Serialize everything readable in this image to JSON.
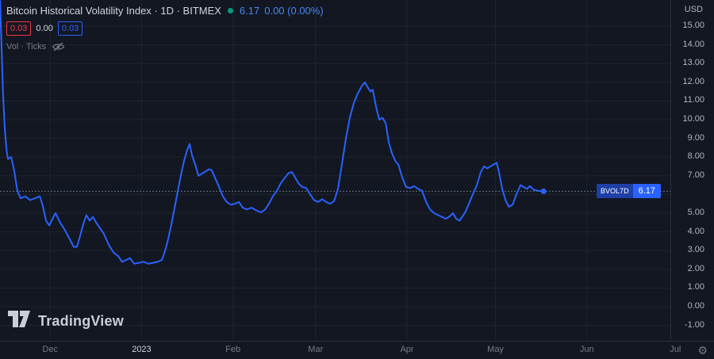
{
  "colors": {
    "background": "#131722",
    "border": "#2a2e39",
    "grid": "rgba(42,46,57,0.55)",
    "line": "#2962ff",
    "last_price_line": "#5d7388",
    "axis_text": "#b2b5be",
    "muted_text": "#787b86",
    "title_text": "#d1d4dc",
    "change_text": "#4589f5",
    "status_dot_green": "#089981",
    "red": "#f23645",
    "tag_symbol_bg": "#1d3fa6",
    "tag_value_bg": "#2962ff"
  },
  "header": {
    "title": "Bitcoin Historical Volatility Index · 1D · BITMEX",
    "price": "6.17",
    "change": "0.00 (0.00%)",
    "series_values": {
      "v1": "0.03",
      "v2": "0.00",
      "v3": "0.03"
    },
    "indicator_label": "Vol · Ticks",
    "currency": "USD"
  },
  "price_tag": {
    "symbol": "BVOL7D",
    "value": "6.17"
  },
  "footer": {
    "brand": "TradingView",
    "gear_icon": "⚙"
  },
  "chart_data": {
    "type": "line",
    "title": "Bitcoin Historical Volatility Index",
    "series_name": "BVOL7D",
    "last_value": 6.17,
    "legend_position": "top-left",
    "grid": "faint",
    "y_axis": {
      "range": [
        -1.82,
        16.4
      ],
      "ticks": [
        15,
        14,
        13,
        12,
        11,
        10,
        9,
        8,
        7,
        5,
        4,
        3,
        2,
        1,
        0,
        -1
      ],
      "grid_lines": [
        15,
        14,
        13,
        12,
        11,
        10,
        9,
        8,
        7,
        6,
        5,
        4,
        3,
        2,
        1,
        0,
        -1
      ]
    },
    "x_axis": {
      "unit": "days from first visible bar (mid-Nov 2022)",
      "range": [
        0,
        227.3
      ],
      "ticks": [
        {
          "label": "Dec",
          "day": 17
        },
        {
          "label": "2023",
          "day": 48,
          "major": true
        },
        {
          "label": "Feb",
          "day": 79
        },
        {
          "label": "Mar",
          "day": 107
        },
        {
          "label": "Apr",
          "day": 138
        },
        {
          "label": "May",
          "day": 168
        },
        {
          "label": "Jun",
          "day": 199
        },
        {
          "label": "Jul",
          "day": 229
        }
      ]
    },
    "points": [
      [
        0,
        16.4
      ],
      [
        0.5,
        14.0
      ],
      [
        1,
        11.5
      ],
      [
        1.6,
        9.6
      ],
      [
        2.2,
        8.4
      ],
      [
        2.7,
        7.9
      ],
      [
        3.8,
        8.0
      ],
      [
        4.8,
        7.3
      ],
      [
        5.9,
        6.2
      ],
      [
        7,
        5.8
      ],
      [
        8.6,
        5.9
      ],
      [
        10.2,
        5.7
      ],
      [
        11.8,
        5.8
      ],
      [
        13.5,
        5.9
      ],
      [
        14.5,
        5.4
      ],
      [
        15.6,
        4.6
      ],
      [
        16.7,
        4.35
      ],
      [
        17.8,
        4.7
      ],
      [
        18.8,
        5.0
      ],
      [
        20.4,
        4.5
      ],
      [
        22,
        4.1
      ],
      [
        23.7,
        3.6
      ],
      [
        25,
        3.2
      ],
      [
        26.1,
        3.2
      ],
      [
        27.2,
        3.8
      ],
      [
        28.2,
        4.4
      ],
      [
        29.3,
        4.9
      ],
      [
        30.4,
        4.6
      ],
      [
        31.5,
        4.8
      ],
      [
        32.6,
        4.5
      ],
      [
        33.9,
        4.2
      ],
      [
        35.2,
        3.9
      ],
      [
        36.9,
        3.3
      ],
      [
        38.5,
        2.9
      ],
      [
        40.1,
        2.7
      ],
      [
        41.4,
        2.4
      ],
      [
        42.8,
        2.5
      ],
      [
        44.1,
        2.6
      ],
      [
        45.5,
        2.3
      ],
      [
        47.1,
        2.35
      ],
      [
        48.7,
        2.4
      ],
      [
        50.3,
        2.3
      ],
      [
        51.9,
        2.35
      ],
      [
        53.5,
        2.4
      ],
      [
        54.9,
        2.5
      ],
      [
        56,
        3.0
      ],
      [
        57,
        3.6
      ],
      [
        58.1,
        4.4
      ],
      [
        59.2,
        5.3
      ],
      [
        60.3,
        6.2
      ],
      [
        61.3,
        7.0
      ],
      [
        62.4,
        7.8
      ],
      [
        63.5,
        8.4
      ],
      [
        64.3,
        8.7
      ],
      [
        65.1,
        8.1
      ],
      [
        66.2,
        7.6
      ],
      [
        67.3,
        7.0
      ],
      [
        68.3,
        7.1
      ],
      [
        69.4,
        7.2
      ],
      [
        70.8,
        7.35
      ],
      [
        71.8,
        7.3
      ],
      [
        72.9,
        6.9
      ],
      [
        74.3,
        6.4
      ],
      [
        75.6,
        5.9
      ],
      [
        76.9,
        5.6
      ],
      [
        78.3,
        5.45
      ],
      [
        79.6,
        5.5
      ],
      [
        81,
        5.6
      ],
      [
        82.3,
        5.3
      ],
      [
        83.7,
        5.2
      ],
      [
        85.3,
        5.3
      ],
      [
        86.9,
        5.15
      ],
      [
        88.5,
        5.05
      ],
      [
        89.9,
        5.2
      ],
      [
        91.2,
        5.5
      ],
      [
        92.5,
        5.9
      ],
      [
        93.9,
        6.2
      ],
      [
        95.2,
        6.6
      ],
      [
        96.6,
        6.9
      ],
      [
        97.9,
        7.15
      ],
      [
        99,
        7.2
      ],
      [
        100.1,
        6.9
      ],
      [
        101.2,
        6.6
      ],
      [
        102.5,
        6.4
      ],
      [
        103.8,
        6.35
      ],
      [
        105.2,
        6.0
      ],
      [
        106.5,
        5.7
      ],
      [
        107.9,
        5.6
      ],
      [
        109.2,
        5.75
      ],
      [
        110.6,
        5.6
      ],
      [
        111.9,
        5.5
      ],
      [
        113.3,
        5.65
      ],
      [
        114.6,
        6.3
      ],
      [
        115.9,
        7.6
      ],
      [
        117.3,
        9.0
      ],
      [
        118.6,
        10.1
      ],
      [
        120,
        10.9
      ],
      [
        121.3,
        11.4
      ],
      [
        122.7,
        11.8
      ],
      [
        123.7,
        12.0
      ],
      [
        124.8,
        11.7
      ],
      [
        125.6,
        11.5
      ],
      [
        126.4,
        11.6
      ],
      [
        127.5,
        10.7
      ],
      [
        128.6,
        10.0
      ],
      [
        129.7,
        10.1
      ],
      [
        130.8,
        9.8
      ],
      [
        131.8,
        8.8
      ],
      [
        132.9,
        8.2
      ],
      [
        134,
        7.8
      ],
      [
        135.1,
        7.6
      ],
      [
        136.4,
        6.9
      ],
      [
        137.7,
        6.4
      ],
      [
        139.1,
        6.35
      ],
      [
        140.4,
        6.45
      ],
      [
        141.8,
        6.3
      ],
      [
        143.1,
        6.2
      ],
      [
        144.5,
        5.6
      ],
      [
        145.8,
        5.2
      ],
      [
        147.2,
        5.0
      ],
      [
        148.5,
        4.9
      ],
      [
        149.9,
        4.8
      ],
      [
        151.2,
        4.7
      ],
      [
        152.6,
        4.85
      ],
      [
        153.6,
        5.0
      ],
      [
        154.7,
        4.7
      ],
      [
        155.8,
        4.6
      ],
      [
        156.9,
        4.85
      ],
      [
        157.9,
        5.1
      ],
      [
        159,
        5.5
      ],
      [
        160.3,
        6.0
      ],
      [
        161.7,
        6.5
      ],
      [
        163,
        7.2
      ],
      [
        164.1,
        7.5
      ],
      [
        165.2,
        7.4
      ],
      [
        166.3,
        7.5
      ],
      [
        167.3,
        7.6
      ],
      [
        168.4,
        7.7
      ],
      [
        169.2,
        7.2
      ],
      [
        170.3,
        6.3
      ],
      [
        171.4,
        5.7
      ],
      [
        172.5,
        5.35
      ],
      [
        173.8,
        5.45
      ],
      [
        175.1,
        6.0
      ],
      [
        176.5,
        6.5
      ],
      [
        177.6,
        6.4
      ],
      [
        178.6,
        6.3
      ],
      [
        179.7,
        6.45
      ],
      [
        181,
        6.25
      ],
      [
        182.4,
        6.2
      ],
      [
        184.3,
        6.17
      ]
    ]
  }
}
